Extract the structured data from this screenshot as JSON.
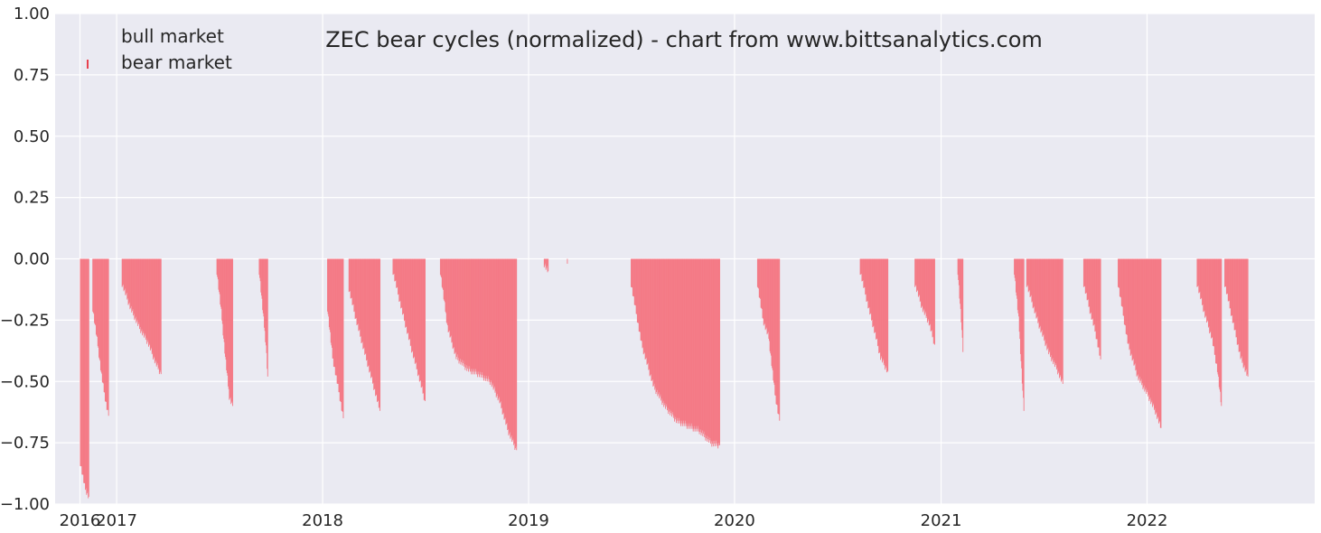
{
  "chart_data": {
    "type": "bar",
    "title": "ZEC bear cycles (normalized)  - chart from www.bittsanalytics.com",
    "xlabel": "",
    "ylabel": "",
    "ylim": [
      -1.0,
      1.0
    ],
    "xlim": [
      "2016-09-14",
      "2022-10-25"
    ],
    "grid": true,
    "legend_placement": "top-left",
    "colors": {
      "plot_background": "#eaeaf2",
      "grid": "#ffffff",
      "bear": "#f47a86",
      "bear_legend": "#e8414f",
      "text": "#262626"
    },
    "x_ticks": [
      {
        "date": "2016-10-28",
        "label": "2016"
      },
      {
        "date": "2017-01-01",
        "label": "2017"
      },
      {
        "date": "2018-01-01",
        "label": "2018"
      },
      {
        "date": "2019-01-01",
        "label": "2019"
      },
      {
        "date": "2020-01-01",
        "label": "2020"
      },
      {
        "date": "2021-01-01",
        "label": "2021"
      },
      {
        "date": "2022-01-01",
        "label": "2022"
      }
    ],
    "y_ticks": [
      {
        "value": 1.0,
        "label": "1.00"
      },
      {
        "value": 0.75,
        "label": "0.75"
      },
      {
        "value": 0.5,
        "label": "0.50"
      },
      {
        "value": 0.25,
        "label": "0.25"
      },
      {
        "value": 0.0,
        "label": "0.00"
      },
      {
        "value": -0.25,
        "label": "−0.25"
      },
      {
        "value": -0.5,
        "label": "−0.50"
      },
      {
        "value": -0.75,
        "label": "−0.75"
      },
      {
        "value": -1.0,
        "label": "−1.00"
      }
    ],
    "series": [
      {
        "name": "bull market",
        "type": "bar",
        "values": []
      },
      {
        "name": "bear market",
        "type": "bar",
        "episodes": [
          {
            "start": "2016-10-28",
            "points": [
              [
                "2016-10-28",
                -0.83
              ],
              [
                "2016-11-05",
                -0.93
              ],
              [
                "2016-11-12",
                -0.97
              ]
            ]
          },
          {
            "start": "2016-11-19",
            "points": [
              [
                "2016-11-19",
                -0.2
              ],
              [
                "2016-11-28",
                -0.35
              ],
              [
                "2016-12-05",
                -0.48
              ],
              [
                "2016-12-12",
                -0.58
              ],
              [
                "2016-12-17",
                -0.64
              ]
            ]
          },
          {
            "start": "2017-01-10",
            "points": [
              [
                "2017-01-10",
                -0.1
              ],
              [
                "2017-01-25",
                -0.2
              ],
              [
                "2017-02-10",
                -0.28
              ],
              [
                "2017-02-25",
                -0.34
              ],
              [
                "2017-03-10",
                -0.42
              ],
              [
                "2017-03-20",
                -0.47
              ]
            ]
          },
          {
            "start": "2017-06-27",
            "points": [
              [
                "2017-06-27",
                -0.05
              ],
              [
                "2017-07-05",
                -0.22
              ],
              [
                "2017-07-12",
                -0.4
              ],
              [
                "2017-07-19",
                -0.56
              ],
              [
                "2017-07-25",
                -0.6
              ]
            ]
          },
          {
            "start": "2017-09-10",
            "points": [
              [
                "2017-09-10",
                -0.05
              ],
              [
                "2017-09-16",
                -0.2
              ],
              [
                "2017-09-22",
                -0.35
              ],
              [
                "2017-09-25",
                -0.48
              ]
            ]
          },
          {
            "start": "2018-01-09",
            "points": [
              [
                "2018-01-09",
                -0.2
              ],
              [
                "2018-01-18",
                -0.4
              ],
              [
                "2018-01-30",
                -0.55
              ],
              [
                "2018-02-06",
                -0.65
              ]
            ]
          },
          {
            "start": "2018-02-16",
            "points": [
              [
                "2018-02-16",
                -0.12
              ],
              [
                "2018-03-01",
                -0.25
              ],
              [
                "2018-03-18",
                -0.4
              ],
              [
                "2018-04-01",
                -0.52
              ],
              [
                "2018-04-12",
                -0.62
              ]
            ]
          },
          {
            "start": "2018-05-05",
            "points": [
              [
                "2018-05-05",
                -0.05
              ],
              [
                "2018-05-20",
                -0.2
              ],
              [
                "2018-06-05",
                -0.35
              ],
              [
                "2018-06-20",
                -0.48
              ],
              [
                "2018-07-01",
                -0.58
              ]
            ]
          },
          {
            "start": "2018-07-28",
            "points": [
              [
                "2018-07-28",
                -0.05
              ],
              [
                "2018-08-10",
                -0.28
              ],
              [
                "2018-08-25",
                -0.4
              ],
              [
                "2018-09-15",
                -0.45
              ],
              [
                "2018-10-05",
                -0.47
              ],
              [
                "2018-10-25",
                -0.5
              ],
              [
                "2018-11-10",
                -0.58
              ],
              [
                "2018-11-25",
                -0.7
              ],
              [
                "2018-12-10",
                -0.78
              ]
            ]
          },
          {
            "start": "2019-01-28",
            "points": [
              [
                "2019-01-28",
                -0.02
              ],
              [
                "2019-02-04",
                -0.05
              ]
            ]
          },
          {
            "start": "2019-03-10",
            "points": [
              [
                "2019-03-10",
                -0.02
              ]
            ]
          },
          {
            "start": "2019-07-01",
            "points": [
              [
                "2019-07-01",
                -0.1
              ],
              [
                "2019-07-20",
                -0.35
              ],
              [
                "2019-08-10",
                -0.52
              ],
              [
                "2019-08-30",
                -0.6
              ],
              [
                "2019-09-20",
                -0.66
              ],
              [
                "2019-10-10",
                -0.68
              ],
              [
                "2019-10-30",
                -0.7
              ],
              [
                "2019-11-20",
                -0.75
              ],
              [
                "2019-12-05",
                -0.76
              ]
            ]
          },
          {
            "start": "2020-02-10",
            "points": [
              [
                "2020-02-10",
                -0.1
              ],
              [
                "2020-02-20",
                -0.25
              ],
              [
                "2020-03-01",
                -0.32
              ],
              [
                "2020-03-12",
                -0.55
              ],
              [
                "2020-03-20",
                -0.66
              ]
            ]
          },
          {
            "start": "2020-08-10",
            "points": [
              [
                "2020-08-10",
                -0.05
              ],
              [
                "2020-08-25",
                -0.2
              ],
              [
                "2020-09-05",
                -0.3
              ],
              [
                "2020-09-15",
                -0.4
              ],
              [
                "2020-09-28",
                -0.46
              ]
            ]
          },
          {
            "start": "2020-11-15",
            "points": [
              [
                "2020-11-15",
                -0.1
              ],
              [
                "2020-11-28",
                -0.2
              ],
              [
                "2020-12-10",
                -0.26
              ],
              [
                "2020-12-20",
                -0.35
              ]
            ]
          },
          {
            "start": "2021-01-30",
            "points": [
              [
                "2021-01-30",
                -0.05
              ],
              [
                "2021-02-05",
                -0.25
              ],
              [
                "2021-02-08",
                -0.38
              ]
            ]
          },
          {
            "start": "2021-05-10",
            "points": [
              [
                "2021-05-10",
                -0.05
              ],
              [
                "2021-05-18",
                -0.25
              ],
              [
                "2021-05-27",
                -0.62
              ]
            ]
          },
          {
            "start": "2021-06-01",
            "points": [
              [
                "2021-06-01",
                -0.1
              ],
              [
                "2021-06-20",
                -0.25
              ],
              [
                "2021-07-10",
                -0.38
              ],
              [
                "2021-07-25",
                -0.45
              ],
              [
                "2021-08-04",
                -0.51
              ]
            ]
          },
          {
            "start": "2021-09-10",
            "points": [
              [
                "2021-09-10",
                -0.1
              ],
              [
                "2021-09-20",
                -0.2
              ],
              [
                "2021-10-01",
                -0.3
              ],
              [
                "2021-10-10",
                -0.41
              ]
            ]
          },
          {
            "start": "2021-11-10",
            "points": [
              [
                "2021-11-10",
                -0.1
              ],
              [
                "2021-11-28",
                -0.35
              ],
              [
                "2021-12-15",
                -0.48
              ],
              [
                "2022-01-01",
                -0.55
              ],
              [
                "2022-01-15",
                -0.62
              ],
              [
                "2022-01-25",
                -0.69
              ]
            ]
          },
          {
            "start": "2022-03-30",
            "points": [
              [
                "2022-03-30",
                -0.1
              ],
              [
                "2022-04-12",
                -0.22
              ],
              [
                "2022-04-25",
                -0.32
              ],
              [
                "2022-05-05",
                -0.45
              ],
              [
                "2022-05-12",
                -0.6
              ]
            ]
          },
          {
            "start": "2022-05-18",
            "points": [
              [
                "2022-05-18",
                -0.1
              ],
              [
                "2022-06-01",
                -0.25
              ],
              [
                "2022-06-15",
                -0.4
              ],
              [
                "2022-06-28",
                -0.48
              ]
            ]
          }
        ]
      }
    ]
  }
}
